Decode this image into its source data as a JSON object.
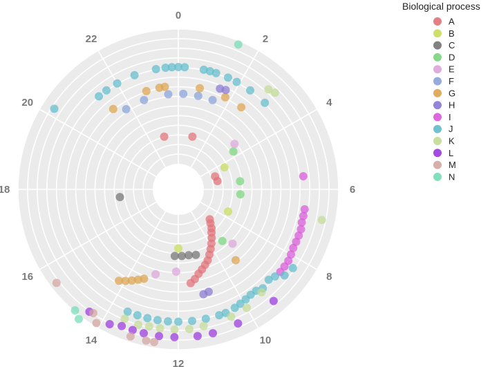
{
  "chart_data": {
    "type": "scatter",
    "subtype": "polar",
    "angular_axis": {
      "unit": "hours",
      "range": [
        0,
        24
      ],
      "ticks": [
        0,
        2,
        4,
        6,
        8,
        10,
        12,
        14,
        16,
        18,
        20,
        22
      ],
      "direction": "clockwise",
      "zero_at": "top"
    },
    "radial_axis": {
      "range": [
        0,
        11
      ],
      "grid": true,
      "tick_labels_shown": false
    },
    "grid": true,
    "legend": {
      "title": "Biological process",
      "position": "right"
    },
    "series": [
      {
        "name": "A",
        "color": "#e07278",
        "points": [
          [
            23.0,
            2.6
          ],
          [
            1.0,
            2.6
          ],
          [
            4.7,
            1.2
          ],
          [
            5.2,
            1.3
          ],
          [
            8.9,
            1.6
          ],
          [
            9.1,
            1.9
          ],
          [
            9.3,
            2.3
          ],
          [
            9.5,
            2.6
          ],
          [
            9.7,
            3.0
          ],
          [
            9.9,
            3.4
          ],
          [
            10.1,
            3.8
          ],
          [
            10.3,
            4.2
          ],
          [
            10.5,
            4.6
          ],
          [
            10.7,
            4.9
          ],
          [
            10.9,
            5.2
          ],
          [
            11.1,
            5.5
          ],
          [
            11.3,
            5.9
          ],
          [
            11.5,
            6.2
          ]
        ]
      },
      {
        "name": "B",
        "color": "#c8dd5a",
        "points": [
          [
            4.3,
            2.3
          ],
          [
            7.6,
            2.6
          ],
          [
            12.0,
            3.0
          ]
        ]
      },
      {
        "name": "C",
        "color": "#737373",
        "points": [
          [
            17.5,
            3.0
          ],
          [
            12.2,
            3.7
          ],
          [
            11.8,
            3.7
          ],
          [
            11.4,
            3.7
          ],
          [
            11.0,
            3.8
          ]
        ]
      },
      {
        "name": "D",
        "color": "#79d57c",
        "points": [
          [
            3.7,
            3.7
          ],
          [
            5.5,
            3.3
          ],
          [
            6.3,
            3.3
          ],
          [
            9.3,
            3.8
          ]
        ]
      },
      {
        "name": "E",
        "color": "#dca3d9",
        "points": [
          [
            3.4,
            4.2
          ],
          [
            9.0,
            4.6
          ],
          [
            12.1,
            5.1
          ],
          [
            13.0,
            5.6
          ]
        ]
      },
      {
        "name": "F",
        "color": "#88a2d8",
        "points": [
          [
            21.8,
            6.3
          ],
          [
            22.6,
            6.3
          ],
          [
            23.6,
            6.3
          ],
          [
            0.2,
            6.3
          ],
          [
            0.8,
            6.3
          ],
          [
            1.4,
            6.3
          ]
        ]
      },
      {
        "name": "G",
        "color": "#dca44e",
        "points": [
          [
            21.4,
            7.0
          ],
          [
            22.8,
            7.0
          ],
          [
            23.3,
            7.0
          ],
          [
            23.5,
            7.0
          ],
          [
            0.8,
            7.0
          ],
          [
            1.8,
            7.0
          ],
          [
            2.5,
            7.0
          ],
          [
            13.4,
            6.3
          ],
          [
            13.6,
            6.6
          ],
          [
            13.8,
            6.9
          ],
          [
            14.0,
            7.2
          ],
          [
            14.2,
            7.5
          ],
          [
            9.4,
            5.9
          ]
        ]
      },
      {
        "name": "H",
        "color": "#8a78d2",
        "points": [
          [
            1.5,
            7.5
          ],
          [
            1.7,
            7.6
          ],
          [
            10.9,
            7.3
          ],
          [
            11.1,
            7.4
          ]
        ]
      },
      {
        "name": "I",
        "color": "#d957d9",
        "points": [
          [
            5.6,
            9.0
          ],
          [
            6.6,
            9.2
          ],
          [
            6.8,
            9.2
          ],
          [
            7.0,
            9.2
          ],
          [
            7.2,
            9.3
          ],
          [
            7.4,
            9.3
          ],
          [
            7.6,
            9.3
          ],
          [
            7.8,
            9.3
          ],
          [
            8.0,
            9.4
          ],
          [
            8.2,
            9.5
          ],
          [
            8.4,
            9.5
          ],
          [
            8.6,
            9.5
          ]
        ]
      },
      {
        "name": "J",
        "color": "#5fbdcc",
        "points": [
          [
            21.3,
            8.7
          ],
          [
            21.6,
            8.7
          ],
          [
            22.0,
            8.7
          ],
          [
            22.6,
            8.7
          ],
          [
            23.3,
            8.7
          ],
          [
            23.6,
            8.7
          ],
          [
            23.8,
            8.7
          ],
          [
            0.0,
            8.7
          ],
          [
            0.2,
            8.7
          ],
          [
            0.8,
            8.7
          ],
          [
            1.0,
            8.7
          ],
          [
            1.2,
            8.7
          ],
          [
            1.6,
            8.7
          ],
          [
            1.9,
            8.7
          ],
          [
            2.4,
            8.7
          ],
          [
            3.0,
            8.7
          ],
          [
            20.2,
            11.0
          ],
          [
            8.3,
            10.2
          ],
          [
            8.6,
            10.0
          ],
          [
            8.8,
            9.4
          ],
          [
            9.0,
            9.2
          ],
          [
            9.3,
            9.4
          ],
          [
            9.5,
            9.2
          ],
          [
            9.7,
            9.2
          ],
          [
            9.9,
            9.3
          ],
          [
            10.1,
            9.4
          ],
          [
            10.3,
            9.5
          ],
          [
            10.6,
            9.6
          ],
          [
            10.8,
            9.6
          ],
          [
            11.2,
            9.6
          ],
          [
            11.6,
            9.6
          ],
          [
            12.0,
            9.6
          ],
          [
            12.3,
            9.6
          ],
          [
            12.6,
            9.6
          ],
          [
            12.9,
            9.6
          ],
          [
            13.2,
            9.6
          ],
          [
            13.5,
            9.6
          ]
        ]
      },
      {
        "name": "K",
        "color": "#c2db94",
        "points": [
          [
            2.8,
            9.8
          ],
          [
            3.0,
            10.0
          ],
          [
            6.8,
            10.9
          ],
          [
            9.4,
            9.6
          ],
          [
            10.0,
            10.0
          ],
          [
            10.5,
            10.1
          ],
          [
            11.3,
            10.2
          ],
          [
            11.7,
            10.3
          ],
          [
            12.1,
            10.3
          ],
          [
            12.5,
            10.3
          ],
          [
            12.8,
            10.3
          ],
          [
            13.1,
            10.4
          ],
          [
            13.5,
            10.3
          ]
        ]
      },
      {
        "name": "L",
        "color": "#9a37dc",
        "points": [
          [
            9.3,
            10.9
          ],
          [
            10.4,
            10.9
          ],
          [
            11.1,
            11.0
          ],
          [
            11.5,
            11.0
          ],
          [
            12.1,
            11.0
          ],
          [
            12.5,
            11.0
          ],
          [
            12.9,
            11.0
          ],
          [
            13.2,
            11.0
          ],
          [
            13.5,
            11.0
          ],
          [
            13.8,
            11.3
          ],
          [
            14.4,
            11.3
          ]
        ]
      },
      {
        "name": "M",
        "color": "#d3a59f",
        "points": [
          [
            15.5,
            11.5
          ],
          [
            14.3,
            11.2
          ],
          [
            12.6,
            11.6
          ],
          [
            12.8,
            11.6
          ],
          [
            13.2,
            11.6
          ],
          [
            14.1,
            11.8
          ]
        ]
      },
      {
        "name": "N",
        "color": "#73dcb4",
        "points": [
          [
            1.5,
            11.8
          ],
          [
            14.5,
            12.4
          ],
          [
            14.7,
            12.0
          ]
        ]
      }
    ]
  }
}
